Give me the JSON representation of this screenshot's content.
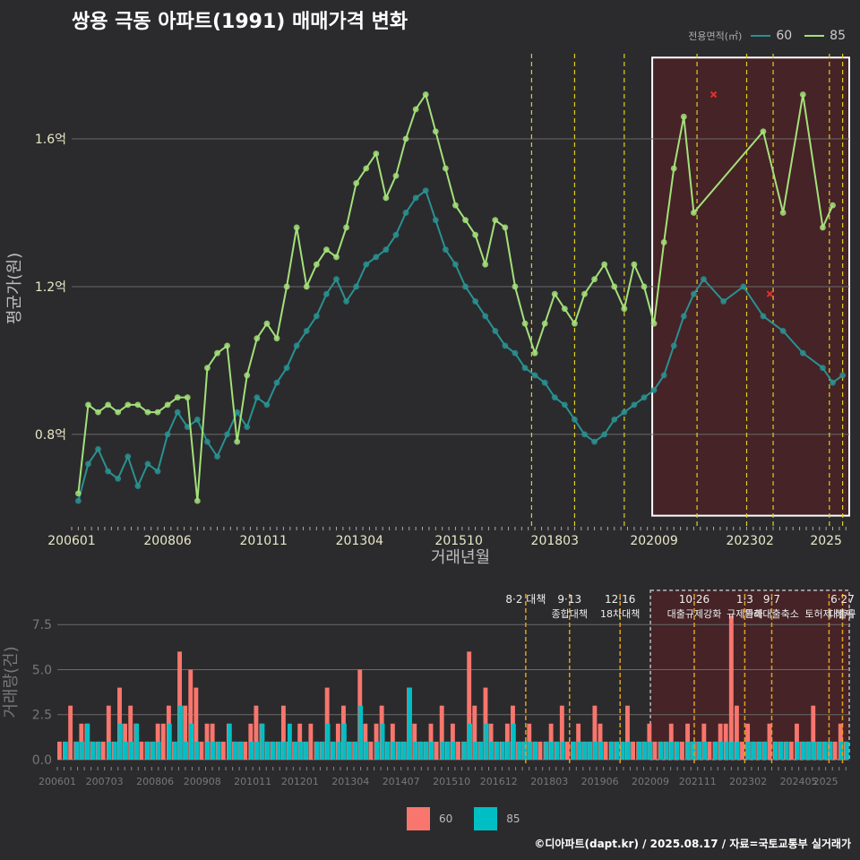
{
  "title": "쌍용 극동 아파트(1991) 매매가격 변화",
  "footer": "©디아파트(dapt.kr) / 2025.08.17 / 자료=국토교통부 실거래가",
  "chart_data": [
    {
      "type": "line",
      "xlabel": "거래년월",
      "ylabel": "평균가(원)",
      "ylim": [
        0.55,
        1.84
      ],
      "y_ticks": [
        0.8,
        1.2,
        1.6
      ],
      "y_tick_labels": [
        "0.8억",
        "1.2억",
        "1.6억"
      ],
      "x_tick_labels": [
        "200601",
        "200806",
        "201011",
        "201304",
        "201510",
        "201803",
        "202009",
        "202302",
        "2025"
      ],
      "xlim": [
        "2006-01",
        "2025-08"
      ],
      "legend_title": "전용면적(㎡)",
      "legend_position": "top-right",
      "series": [
        {
          "name": "60",
          "color": "#2a9191",
          "x": [
            "2006-03",
            "2006-06",
            "2006-09",
            "2006-12",
            "2007-03",
            "2007-06",
            "2007-09",
            "2007-12",
            "2008-03",
            "2008-06",
            "2008-09",
            "2008-12",
            "2009-03",
            "2009-06",
            "2009-09",
            "2009-12",
            "2010-03",
            "2010-06",
            "2010-09",
            "2010-12",
            "2011-03",
            "2011-06",
            "2011-09",
            "2011-12",
            "2012-03",
            "2012-06",
            "2012-09",
            "2012-12",
            "2013-03",
            "2013-06",
            "2013-09",
            "2013-12",
            "2014-03",
            "2014-06",
            "2014-09",
            "2014-12",
            "2015-03",
            "2015-06",
            "2015-09",
            "2015-12",
            "2016-03",
            "2016-06",
            "2016-09",
            "2016-12",
            "2017-03",
            "2017-06",
            "2017-09",
            "2017-12",
            "2018-03",
            "2018-06",
            "2018-09",
            "2018-12",
            "2019-03",
            "2019-06",
            "2019-09",
            "2019-12",
            "2020-03",
            "2020-06",
            "2020-09",
            "2020-12",
            "2021-03",
            "2021-06",
            "2021-09",
            "2021-12",
            "2022-06",
            "2022-12",
            "2023-06",
            "2023-12",
            "2024-06",
            "2024-12",
            "2025-03",
            "2025-06"
          ],
          "values": [
            0.62,
            0.72,
            0.76,
            0.7,
            0.68,
            0.74,
            0.66,
            0.72,
            0.7,
            0.8,
            0.86,
            0.82,
            0.84,
            0.78,
            0.74,
            0.8,
            0.86,
            0.82,
            0.9,
            0.88,
            0.94,
            0.98,
            1.04,
            1.08,
            1.12,
            1.18,
            1.22,
            1.16,
            1.2,
            1.26,
            1.28,
            1.3,
            1.34,
            1.4,
            1.44,
            1.46,
            1.38,
            1.3,
            1.26,
            1.2,
            1.16,
            1.12,
            1.08,
            1.04,
            1.02,
            0.98,
            0.96,
            0.94,
            0.9,
            0.88,
            0.84,
            0.8,
            0.78,
            0.8,
            0.84,
            0.86,
            0.88,
            0.9,
            0.92,
            0.96,
            1.04,
            1.12,
            1.18,
            1.22,
            1.16,
            1.2,
            1.12,
            1.08,
            1.02,
            0.98,
            0.94,
            0.96
          ]
        },
        {
          "name": "85",
          "color": "#a4e07a",
          "x": [
            "2006-03",
            "2006-06",
            "2006-09",
            "2006-12",
            "2007-03",
            "2007-06",
            "2007-09",
            "2007-12",
            "2008-03",
            "2008-06",
            "2008-09",
            "2008-12",
            "2009-03",
            "2009-06",
            "2009-09",
            "2009-12",
            "2010-03",
            "2010-06",
            "2010-09",
            "2010-12",
            "2011-03",
            "2011-06",
            "2011-09",
            "2011-12",
            "2012-03",
            "2012-06",
            "2012-09",
            "2012-12",
            "2013-03",
            "2013-06",
            "2013-09",
            "2013-12",
            "2014-03",
            "2014-06",
            "2014-09",
            "2014-12",
            "2015-03",
            "2015-06",
            "2015-09",
            "2015-12",
            "2016-03",
            "2016-06",
            "2016-09",
            "2016-12",
            "2017-03",
            "2017-06",
            "2017-09",
            "2017-12",
            "2018-03",
            "2018-06",
            "2018-09",
            "2018-12",
            "2019-03",
            "2019-06",
            "2019-09",
            "2019-12",
            "2020-03",
            "2020-06",
            "2020-09",
            "2020-12",
            "2021-03",
            "2021-06",
            "2021-09",
            "2023-06",
            "2023-12",
            "2024-06",
            "2024-12",
            "2025-03"
          ],
          "values": [
            0.64,
            0.88,
            0.86,
            0.88,
            0.86,
            0.88,
            0.88,
            0.86,
            0.86,
            0.88,
            0.9,
            0.9,
            0.62,
            0.98,
            1.02,
            1.04,
            0.78,
            0.96,
            1.06,
            1.1,
            1.06,
            1.2,
            1.36,
            1.2,
            1.26,
            1.3,
            1.28,
            1.36,
            1.48,
            1.52,
            1.56,
            1.44,
            1.5,
            1.6,
            1.68,
            1.72,
            1.62,
            1.52,
            1.42,
            1.38,
            1.34,
            1.26,
            1.38,
            1.36,
            1.2,
            1.1,
            1.02,
            1.1,
            1.18,
            1.14,
            1.1,
            1.18,
            1.22,
            1.26,
            1.2,
            1.14,
            1.26,
            1.2,
            1.1,
            1.32,
            1.52,
            1.66,
            1.4,
            1.62,
            1.4,
            1.72,
            1.36,
            1.42
          ]
        }
      ]
    },
    {
      "type": "bar",
      "xlabel": "",
      "ylabel": "거래량(건)",
      "ylim": [
        0,
        9.6
      ],
      "y_ticks": [
        0.0,
        2.5,
        5.0,
        7.5
      ],
      "y_tick_labels": [
        "0.0",
        "2.5",
        "5.0",
        "7.5"
      ],
      "x_tick_labels": [
        "200601",
        "200703",
        "200806",
        "200908",
        "201011",
        "201201",
        "201304",
        "201407",
        "201510",
        "201612",
        "201803",
        "201906",
        "202009",
        "202111",
        "202302",
        "202405",
        "2025"
      ],
      "legend_position": "bottom",
      "series": [
        {
          "name": "60",
          "color": "#f8766d",
          "values": [
            1,
            1,
            3,
            1,
            2,
            2,
            1,
            1,
            1,
            3,
            1,
            4,
            2,
            3,
            2,
            1,
            1,
            1,
            2,
            2,
            3,
            1,
            6,
            3,
            5,
            4,
            1,
            2,
            2,
            1,
            1,
            2,
            1,
            1,
            1,
            2,
            3,
            2,
            1,
            1,
            1,
            3,
            1,
            1,
            2,
            1,
            2,
            1,
            1,
            4,
            1,
            2,
            3,
            1,
            1,
            5,
            2,
            1,
            2,
            3,
            1,
            2,
            1,
            1,
            4,
            2,
            1,
            1,
            2,
            1,
            3,
            1,
            2,
            1,
            1,
            6,
            3,
            1,
            4,
            2,
            1,
            1,
            2,
            3,
            1,
            1,
            2,
            1,
            1,
            1,
            2,
            1,
            3,
            1,
            1,
            2,
            1,
            1,
            3,
            2,
            1,
            1,
            1,
            1,
            3,
            1,
            1,
            1,
            2,
            1,
            1,
            1,
            2,
            1,
            1,
            2,
            1,
            1,
            2,
            1,
            1,
            2,
            2,
            8,
            3,
            1,
            2,
            1,
            1,
            1,
            2,
            1,
            1,
            1,
            1,
            2,
            1,
            1,
            3,
            1,
            1,
            1,
            1,
            2,
            1
          ]
        },
        {
          "name": "85",
          "color": "#00bfc4",
          "values": [
            0,
            1,
            0,
            1,
            1,
            2,
            1,
            1,
            0,
            1,
            1,
            2,
            1,
            1,
            2,
            0,
            1,
            1,
            1,
            0,
            2,
            1,
            3,
            1,
            2,
            1,
            0,
            1,
            1,
            1,
            0,
            2,
            1,
            1,
            0,
            1,
            1,
            2,
            1,
            1,
            1,
            1,
            2,
            1,
            1,
            1,
            0,
            1,
            1,
            2,
            1,
            1,
            2,
            1,
            1,
            3,
            1,
            0,
            1,
            2,
            1,
            1,
            1,
            1,
            4,
            1,
            1,
            1,
            1,
            0,
            1,
            1,
            1,
            0,
            1,
            2,
            1,
            1,
            2,
            1,
            1,
            1,
            1,
            2,
            1,
            1,
            1,
            1,
            0,
            1,
            1,
            1,
            1,
            0,
            1,
            1,
            1,
            1,
            1,
            1,
            0,
            1,
            1,
            1,
            1,
            0,
            1,
            1,
            1,
            0,
            1,
            1,
            1,
            1,
            0,
            1,
            1,
            1,
            1,
            0,
            1,
            1,
            1,
            1,
            1,
            0,
            1,
            1,
            1,
            1,
            0,
            1,
            1,
            1,
            0,
            1,
            1,
            1,
            1,
            1,
            1,
            1,
            0,
            1,
            1
          ]
        }
      ],
      "annotations": [
        {
          "x": "2017-08",
          "line1": "8·2 대책",
          "line2": ""
        },
        {
          "x": "2018-09",
          "line1": "9·13",
          "line2": "종합대책"
        },
        {
          "x": "2019-12",
          "line1": "12·16",
          "line2": "18차대책"
        },
        {
          "x": "2021-10",
          "line1": "10·26",
          "line2": "대출규제강화"
        },
        {
          "x": "2023-01",
          "line1": "1·3",
          "line2": "규제완화"
        },
        {
          "x": "2023-09",
          "line1": "9·7",
          "line2": "특례대출축소"
        },
        {
          "x": "2025-06",
          "line1": "6·27",
          "line2": "대출규"
        },
        {
          "x": "2025-02",
          "line1": "",
          "line2": "토허제 해제"
        }
      ]
    }
  ]
}
